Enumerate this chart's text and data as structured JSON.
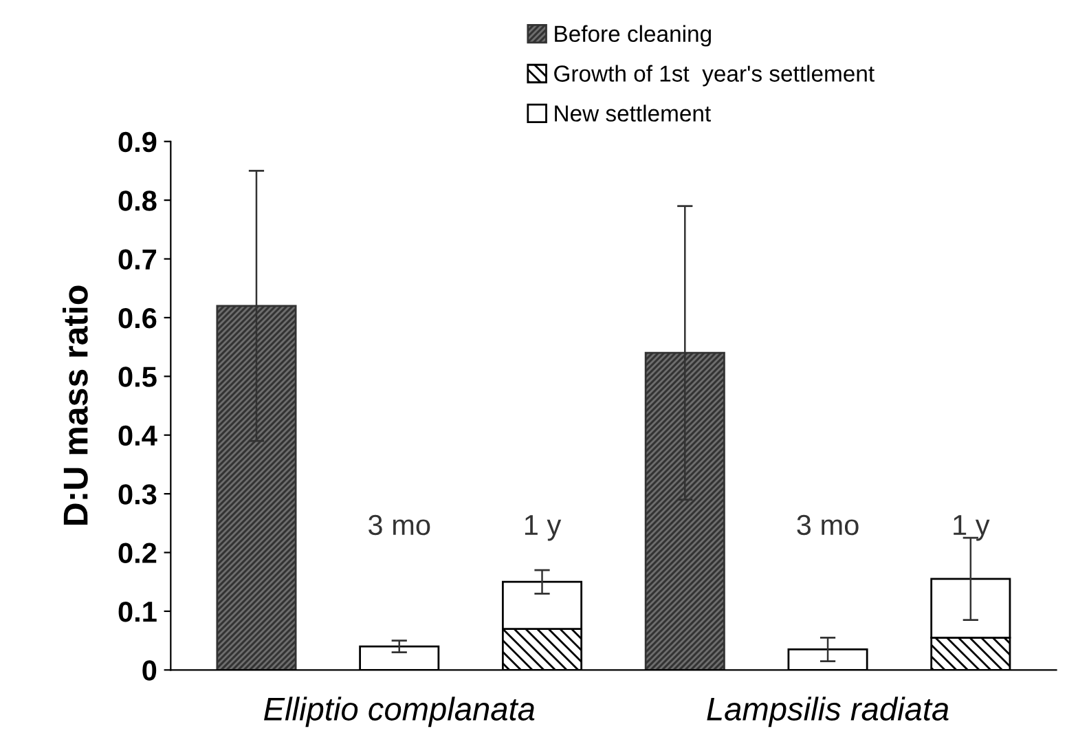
{
  "chart_data": {
    "type": "bar",
    "stacked": true,
    "ylabel": "D:U mass ratio",
    "categories": [
      null,
      "Elliptio complanata",
      null,
      null,
      "Lampsilis radiata",
      null
    ],
    "series": [
      {
        "name": "Before cleaning",
        "color": "#333333",
        "values": [
          0.62,
          null,
          null,
          0.54,
          null,
          null
        ],
        "errors": [
          0.23,
          null,
          null,
          0.25,
          null,
          null
        ]
      },
      {
        "name": "Growth of 1st  year's settlement",
        "color": "#000000",
        "values": [
          null,
          null,
          0.07,
          null,
          null,
          0.055
        ]
      },
      {
        "name": "New settlement",
        "color": "#ffffff",
        "values": [
          null,
          0.04,
          0.08,
          null,
          0.035,
          0.1
        ],
        "errors": [
          null,
          0.01,
          0.02,
          null,
          0.02,
          0.07
        ]
      }
    ],
    "annotations": [
      "3 mo",
      "1 y",
      "3 mo",
      "1 y"
    ],
    "ylim": [
      0,
      0.9
    ],
    "yticks": [
      0,
      0.1,
      0.2,
      0.3,
      0.4,
      0.5,
      0.6,
      0.7,
      0.8,
      0.9
    ],
    "grid": false,
    "legend": "top right"
  }
}
